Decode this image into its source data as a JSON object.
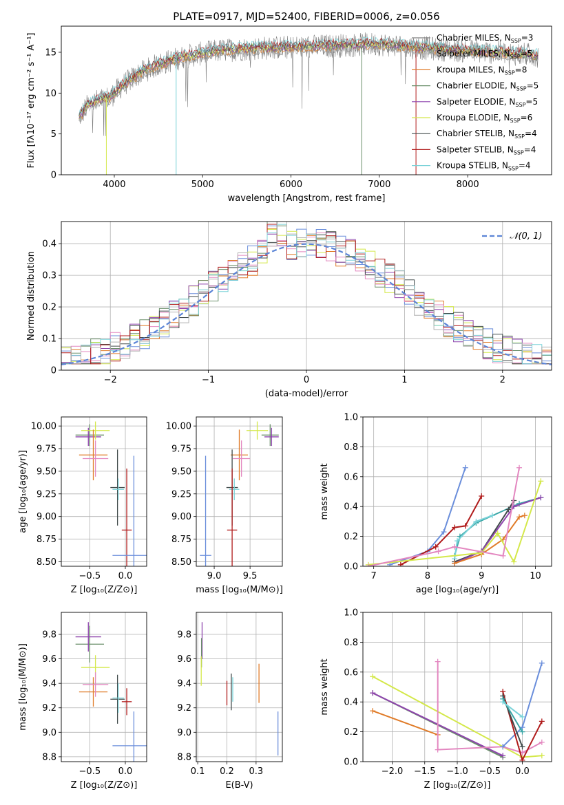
{
  "title": "PLATE=0917, MJD=52400, FIBERID=0006, z=0.056",
  "colors": {
    "data": "#808080",
    "chabrier_miles": "#808080",
    "salpeter_miles": "#b0b0b0",
    "kroupa_miles": "#e07b28",
    "chabrier_elodie": "#6a8f6a",
    "salpeter_elodie": "#8e44ad",
    "kroupa_elodie": "#d4e84a",
    "chabrier_stelib": "#404a4a",
    "salpeter_stelib": "#b01b1b",
    "kroupa_stelib": "#79d2d8",
    "blue": "#6a8edb",
    "pink": "#e387c0",
    "teal": "#3aa6a6",
    "gauss": "#5b84d6"
  },
  "chart_data": [
    {
      "id": "spectrum",
      "type": "line",
      "title": "PLATE=0917, MJD=52400, FIBERID=0006, z=0.056",
      "xlabel": "wavelength [Angstrom, rest frame]",
      "ylabel": "Flux [fλ10⁻¹⁷ erg cm⁻² s⁻¹ A⁻¹]",
      "xlim": [
        3400,
        8950
      ],
      "ylim": [
        0,
        18.2
      ],
      "xticks": [
        4000,
        5000,
        6000,
        7000,
        8000
      ],
      "yticks": [
        0,
        5,
        10,
        15
      ],
      "grid": false,
      "legend_position": "top-right",
      "continuum": [
        [
          3600,
          7.0
        ],
        [
          3700,
          8.5
        ],
        [
          3800,
          9.0
        ],
        [
          3950,
          9.5
        ],
        [
          4100,
          11.0
        ],
        [
          4300,
          12.5
        ],
        [
          4500,
          13.5
        ],
        [
          4800,
          14.5
        ],
        [
          5200,
          15.2
        ],
        [
          5600,
          15.5
        ],
        [
          6000,
          15.6
        ],
        [
          6500,
          15.8
        ],
        [
          7000,
          16.0
        ],
        [
          7400,
          15.6
        ],
        [
          7800,
          15.3
        ],
        [
          8300,
          15.0
        ],
        [
          8800,
          14.6
        ]
      ],
      "series": [
        {
          "name": "Chabrier MILES",
          "nssp": "3",
          "color": "#808080"
        },
        {
          "name": "Salpeter MILES",
          "nssp": "5",
          "color": "#b0b0b0"
        },
        {
          "name": "Kroupa MILES",
          "nssp": "8",
          "color": "#e07b28"
        },
        {
          "name": "Chabrier ELODIE",
          "nssp": "5",
          "color": "#6a8f6a"
        },
        {
          "name": "Salpeter ELODIE",
          "nssp": "5",
          "color": "#8e44ad"
        },
        {
          "name": "Kroupa ELODIE",
          "nssp": "6",
          "color": "#d4e84a"
        },
        {
          "name": "Chabrier STELIB",
          "nssp": "4",
          "color": "#404a4a"
        },
        {
          "name": "Salpeter STELIB",
          "nssp": "4",
          "color": "#b01b1b"
        },
        {
          "name": "Kroupa STELIB",
          "nssp": "4",
          "color": "#79d2d8"
        }
      ]
    },
    {
      "id": "residuals",
      "type": "histogram",
      "xlabel": "(data-model)/error",
      "ylabel": "Normed distribution",
      "xlim": [
        -2.5,
        2.5
      ],
      "ylim": [
        0,
        0.47
      ],
      "xticks": [
        -2,
        -1,
        0,
        1,
        2
      ],
      "yticks": [
        0.0,
        0.1,
        0.2,
        0.3,
        0.4
      ],
      "grid": true,
      "legend_position": "top-right",
      "legend_label": "𝒩(0, 1)",
      "bin_width": 0.1,
      "base_values": [
        0.05,
        0.06,
        0.06,
        0.07,
        0.08,
        0.09,
        0.1,
        0.12,
        0.13,
        0.14,
        0.15,
        0.16,
        0.18,
        0.19,
        0.2,
        0.21,
        0.22,
        0.23,
        0.25,
        0.26,
        0.28,
        0.29,
        0.3,
        0.31,
        0.33,
        0.36,
        0.34,
        0.32,
        0.3,
        0.32,
        0.34,
        0.3,
        0.33,
        0.32,
        0.31,
        0.33,
        0.32,
        0.31,
        0.33,
        0.31,
        0.3,
        0.29,
        0.28,
        0.27,
        0.25,
        0.24,
        0.22,
        0.21,
        0.2,
        0.19,
        0.18,
        0.17,
        0.16,
        0.15,
        0.13,
        0.12,
        0.11,
        0.1,
        0.09,
        0.08,
        0.07,
        0.06,
        0.06,
        0.05,
        0.05,
        0.04,
        0.04,
        0.04,
        0.04,
        0.03,
        0.03,
        0.03,
        0.03,
        0.03,
        0.02,
        0.02,
        0.02,
        0.02,
        0.02,
        0.02
      ],
      "gauss": {
        "mu": 0,
        "sigma": 1
      }
    },
    {
      "id": "age_vs_Z",
      "type": "errorbar",
      "xlabel": "Z [log₁₀(Z/Z⊙)]",
      "ylabel": "age  [log₁₀(age/yr)]",
      "xlim": [
        -0.9,
        0.3
      ],
      "ylim": [
        8.45,
        10.1
      ],
      "xticks": [
        -0.5,
        0.0
      ],
      "yticks": [
        8.5,
        8.75,
        9.0,
        9.25,
        9.5,
        9.75,
        10.0
      ],
      "xtick_labels": [
        "−0.5",
        "0.0"
      ],
      "ytick_labels": [
        "8.50",
        "8.75",
        "9.00",
        "9.25",
        "9.50",
        "9.75",
        "10.00"
      ],
      "grid": true,
      "points": [
        {
          "x": -0.5,
          "xerr": 0.2,
          "y": 9.9,
          "yerr": 0.12,
          "color": "#6a8f6a"
        },
        {
          "x": -0.52,
          "xerr": 0.18,
          "y": 9.88,
          "yerr": 0.1,
          "color": "#8e44ad"
        },
        {
          "x": -0.42,
          "xerr": 0.2,
          "y": 9.95,
          "yerr": 0.1,
          "color": "#d4e84a"
        },
        {
          "x": -0.45,
          "xerr": 0.2,
          "y": 9.68,
          "yerr": 0.28,
          "color": "#e07b28"
        },
        {
          "x": -0.42,
          "xerr": 0.18,
          "y": 9.64,
          "yerr": 0.2,
          "color": "#e387c0"
        },
        {
          "x": -0.11,
          "xerr": 0.1,
          "y": 9.32,
          "yerr": 0.42,
          "color": "#404a4a"
        },
        {
          "x": -0.1,
          "xerr": 0.08,
          "y": 9.3,
          "yerr": 0.12,
          "color": "#79d2d8"
        },
        {
          "x": 0.02,
          "xerr": 0.07,
          "y": 8.85,
          "yerr": 0.68,
          "color": "#b01b1b"
        },
        {
          "x": 0.12,
          "xerr": 0.3,
          "y": 8.57,
          "yerr": 1.1,
          "color": "#6a8edb"
        }
      ]
    },
    {
      "id": "age_vs_mass",
      "type": "errorbar",
      "xlabel": "mass [log₁₀(M/M⊙)]",
      "ylabel": "",
      "xlim": [
        8.75,
        9.95
      ],
      "ylim": [
        8.45,
        10.1
      ],
      "xticks": [
        9.0,
        9.5
      ],
      "yticks": [
        8.5,
        8.75,
        9.0,
        9.25,
        9.5,
        9.75,
        10.0
      ],
      "xtick_labels": [
        "9.0",
        "9.5"
      ],
      "ytick_labels": [
        "8.50",
        "8.75",
        "9.00",
        "9.25",
        "9.50",
        "9.75",
        "10.00"
      ],
      "grid": true,
      "points": [
        {
          "x": 9.78,
          "xerr": 0.12,
          "y": 9.9,
          "yerr": 0.12,
          "color": "#6a8f6a"
        },
        {
          "x": 9.8,
          "xerr": 0.1,
          "y": 9.88,
          "yerr": 0.1,
          "color": "#8e44ad"
        },
        {
          "x": 9.6,
          "xerr": 0.15,
          "y": 9.95,
          "yerr": 0.1,
          "color": "#d4e84a"
        },
        {
          "x": 9.35,
          "xerr": 0.12,
          "y": 9.68,
          "yerr": 0.28,
          "color": "#e07b28"
        },
        {
          "x": 9.38,
          "xerr": 0.12,
          "y": 9.64,
          "yerr": 0.2,
          "color": "#e387c0"
        },
        {
          "x": 9.25,
          "xerr": 0.08,
          "y": 9.32,
          "yerr": 0.42,
          "color": "#404a4a"
        },
        {
          "x": 9.28,
          "xerr": 0.07,
          "y": 9.3,
          "yerr": 0.12,
          "color": "#79d2d8"
        },
        {
          "x": 9.25,
          "xerr": 0.07,
          "y": 8.85,
          "yerr": 0.68,
          "color": "#b01b1b"
        },
        {
          "x": 8.88,
          "xerr": 0.08,
          "y": 8.57,
          "yerr": 1.1,
          "color": "#6a8edb"
        }
      ]
    },
    {
      "id": "weight_vs_age",
      "type": "line",
      "xlabel": "age  [log₁₀(age/yr)]",
      "ylabel": "mass weight",
      "xlim": [
        6.8,
        10.3
      ],
      "ylim": [
        0,
        1
      ],
      "xticks": [
        7,
        8,
        9,
        10
      ],
      "yticks": [
        0.0,
        0.2,
        0.4,
        0.6,
        0.8,
        1.0
      ],
      "xtick_labels": [
        "7",
        "8",
        "9",
        "10"
      ],
      "ytick_labels": [
        "0.0",
        "0.2",
        "0.4",
        "0.6",
        "0.8",
        "1.0"
      ],
      "grid": true,
      "series": [
        {
          "color": "#6a8edb",
          "points": [
            [
              7.3,
              0.01
            ],
            [
              8.0,
              0.1
            ],
            [
              8.3,
              0.23
            ],
            [
              8.7,
              0.66
            ]
          ]
        },
        {
          "color": "#b01b1b",
          "points": [
            [
              7.5,
              0.01
            ],
            [
              8.15,
              0.13
            ],
            [
              8.5,
              0.26
            ],
            [
              8.7,
              0.27
            ],
            [
              9.0,
              0.47
            ]
          ]
        },
        {
          "color": "#3aa6a6",
          "points": [
            [
              8.5,
              0.07
            ],
            [
              8.6,
              0.2
            ],
            [
              8.9,
              0.29
            ],
            [
              9.7,
              0.42
            ],
            [
              10.1,
              0.46
            ]
          ]
        },
        {
          "color": "#79d2d8",
          "points": [
            [
              8.5,
              0.05
            ],
            [
              8.55,
              0.17
            ],
            [
              8.9,
              0.3
            ],
            [
              9.2,
              0.34
            ]
          ]
        },
        {
          "color": "#404a4a",
          "points": [
            [
              8.5,
              0.03
            ],
            [
              9.0,
              0.1
            ],
            [
              9.5,
              0.38
            ],
            [
              9.6,
              0.44
            ]
          ]
        },
        {
          "color": "#8e44ad",
          "points": [
            [
              8.5,
              0.02
            ],
            [
              9.0,
              0.1
            ],
            [
              9.6,
              0.4
            ],
            [
              10.1,
              0.46
            ]
          ]
        },
        {
          "color": "#e07b28",
          "points": [
            [
              8.5,
              0.02
            ],
            [
              9.0,
              0.08
            ],
            [
              9.4,
              0.18
            ],
            [
              9.7,
              0.33
            ],
            [
              9.8,
              0.34
            ]
          ]
        },
        {
          "color": "#d4e84a",
          "points": [
            [
              6.9,
              0.01
            ],
            [
              9.0,
              0.09
            ],
            [
              9.3,
              0.22
            ],
            [
              9.6,
              0.03
            ],
            [
              10.1,
              0.57
            ]
          ]
        },
        {
          "color": "#e387c0",
          "points": [
            [
              6.9,
              0.0
            ],
            [
              8.2,
              0.1
            ],
            [
              8.5,
              0.13
            ],
            [
              9.4,
              0.07
            ],
            [
              9.7,
              0.66
            ]
          ]
        }
      ]
    },
    {
      "id": "mass_vs_Z",
      "type": "errorbar",
      "xlabel": "Z [log₁₀(Z/Z⊙)]",
      "ylabel": "mass [log₁₀(M/M⊙)]",
      "xlim": [
        -0.9,
        0.3
      ],
      "ylim": [
        8.76,
        9.98
      ],
      "xticks": [
        -0.5,
        0.0
      ],
      "yticks": [
        8.8,
        9.0,
        9.2,
        9.4,
        9.6,
        9.8
      ],
      "xtick_labels": [
        "−0.5",
        "0.0"
      ],
      "ytick_labels": [
        "8.8",
        "9.0",
        "9.2",
        "9.4",
        "9.6",
        "9.8"
      ],
      "grid": true,
      "points": [
        {
          "x": -0.5,
          "xerr": 0.2,
          "y": 9.72,
          "yerr": 0.15,
          "color": "#6a8f6a"
        },
        {
          "x": -0.52,
          "xerr": 0.18,
          "y": 9.78,
          "yerr": 0.12,
          "color": "#8e44ad"
        },
        {
          "x": -0.42,
          "xerr": 0.2,
          "y": 9.53,
          "yerr": 0.1,
          "color": "#d4e84a"
        },
        {
          "x": -0.45,
          "xerr": 0.2,
          "y": 9.33,
          "yerr": 0.12,
          "color": "#e07b28"
        },
        {
          "x": -0.42,
          "xerr": 0.18,
          "y": 9.39,
          "yerr": 0.1,
          "color": "#e387c0"
        },
        {
          "x": -0.11,
          "xerr": 0.1,
          "y": 9.27,
          "yerr": 0.2,
          "color": "#404a4a"
        },
        {
          "x": -0.1,
          "xerr": 0.08,
          "y": 9.28,
          "yerr": 0.12,
          "color": "#79d2d8"
        },
        {
          "x": 0.02,
          "xerr": 0.07,
          "y": 9.25,
          "yerr": 0.11,
          "color": "#b01b1b"
        },
        {
          "x": 0.12,
          "xerr": 0.3,
          "y": 8.89,
          "yerr": 0.28,
          "color": "#6a8edb"
        }
      ]
    },
    {
      "id": "mass_vs_ebv",
      "type": "errorbar",
      "xlabel": "E(B-V)",
      "ylabel": "",
      "xlim": [
        0.095,
        0.39
      ],
      "ylim": [
        8.76,
        9.98
      ],
      "xticks": [
        0.1,
        0.2,
        0.3
      ],
      "yticks": [
        8.8,
        9.0,
        9.2,
        9.4,
        9.6,
        9.8
      ],
      "xtick_labels": [
        "0.1",
        "0.2",
        "0.3"
      ],
      "ytick_labels": [
        "8.8",
        "9.0",
        "9.2",
        "9.4",
        "9.6",
        "9.8"
      ],
      "grid": true,
      "points": [
        {
          "x": 0.115,
          "xerr": 0.0,
          "y": 9.75,
          "yerr": 0.15,
          "color": "#8e44ad"
        },
        {
          "x": 0.113,
          "xerr": 0.0,
          "y": 9.65,
          "yerr": 0.12,
          "color": "#6a8f6a"
        },
        {
          "x": 0.112,
          "xerr": 0.0,
          "y": 9.5,
          "yerr": 0.12,
          "color": "#d4e84a"
        },
        {
          "x": 0.2,
          "xerr": 0.0,
          "y": 9.32,
          "yerr": 0.1,
          "color": "#b01b1b"
        },
        {
          "x": 0.215,
          "xerr": 0.0,
          "y": 9.33,
          "yerr": 0.15,
          "color": "#404a4a"
        },
        {
          "x": 0.22,
          "xerr": 0.0,
          "y": 9.35,
          "yerr": 0.1,
          "color": "#79d2d8"
        },
        {
          "x": 0.31,
          "xerr": 0.0,
          "y": 9.4,
          "yerr": 0.16,
          "color": "#e07b28"
        },
        {
          "x": 0.375,
          "xerr": 0.0,
          "y": 8.99,
          "yerr": 0.18,
          "color": "#6a8edb"
        }
      ]
    },
    {
      "id": "weight_vs_Z",
      "type": "line",
      "xlabel": "Z [log₁₀(Z/Z⊙)]",
      "ylabel": "mass weight",
      "xlim": [
        -2.45,
        0.45
      ],
      "ylim": [
        0,
        1
      ],
      "xticks": [
        -2.0,
        -1.5,
        -1.0,
        -0.5,
        0.0
      ],
      "yticks": [
        0.0,
        0.2,
        0.4,
        0.6,
        0.8,
        1.0
      ],
      "xtick_labels": [
        "−2.0",
        "−1.5",
        "−1.0",
        "−0.5",
        "0.0"
      ],
      "ytick_labels": [
        "0.0",
        "0.2",
        "0.4",
        "0.6",
        "0.8",
        "1.0"
      ],
      "grid": true,
      "series": [
        {
          "color": "#d4e84a",
          "points": [
            [
              -2.3,
              0.57
            ],
            [
              0.0,
              0.03
            ],
            [
              0.3,
              0.04
            ]
          ]
        },
        {
          "color": "#6a8f6a",
          "points": [
            [
              -2.3,
              0.46
            ],
            [
              -0.3,
              0.03
            ]
          ]
        },
        {
          "color": "#8e44ad",
          "points": [
            [
              -2.3,
              0.46
            ],
            [
              -0.3,
              0.04
            ]
          ]
        },
        {
          "color": "#e07b28",
          "points": [
            [
              -2.3,
              0.34
            ],
            [
              -1.3,
              0.18
            ]
          ]
        },
        {
          "color": "#e387c0",
          "points": [
            [
              -1.3,
              0.67
            ],
            [
              -1.3,
              0.08
            ],
            [
              -0.3,
              0.1
            ],
            [
              0.0,
              0.06
            ],
            [
              0.3,
              0.13
            ]
          ]
        },
        {
          "color": "#6a8edb",
          "points": [
            [
              -0.3,
              0.1
            ],
            [
              0.0,
              0.23
            ],
            [
              0.3,
              0.66
            ]
          ]
        },
        {
          "color": "#b01b1b",
          "points": [
            [
              -0.3,
              0.47
            ],
            [
              0.0,
              0.01
            ],
            [
              0.3,
              0.27
            ]
          ]
        },
        {
          "color": "#404a4a",
          "points": [
            [
              -0.3,
              0.44
            ],
            [
              0.0,
              0.1
            ]
          ]
        },
        {
          "color": "#3aa6a6",
          "points": [
            [
              -0.3,
              0.42
            ],
            [
              0.0,
              0.2
            ]
          ]
        },
        {
          "color": "#79d2d8",
          "points": [
            [
              -0.3,
              0.4
            ],
            [
              0.0,
              0.3
            ]
          ]
        }
      ]
    }
  ]
}
